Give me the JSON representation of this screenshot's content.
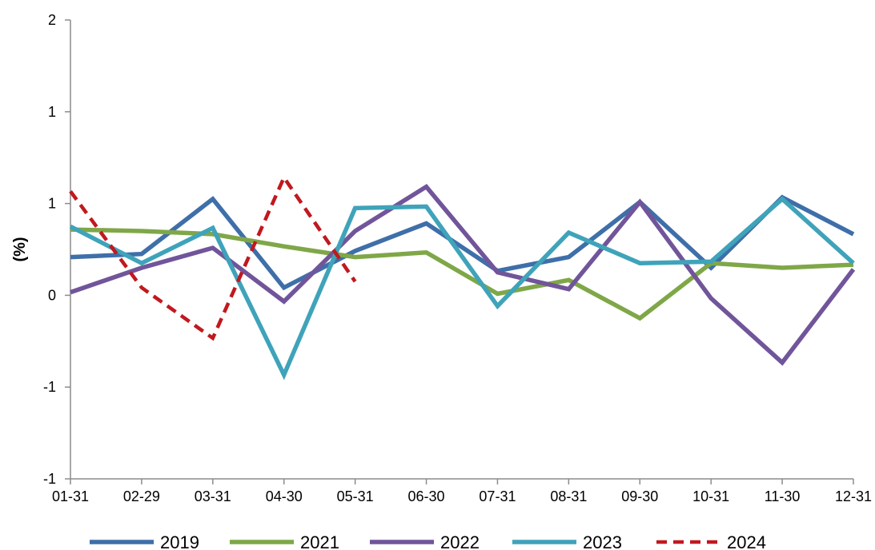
{
  "chart_data": {
    "type": "line",
    "title": "",
    "xlabel": "",
    "ylabel": "(%)",
    "ylim": [
      -1,
      2
    ],
    "yticks": [
      "2",
      "1",
      "1",
      "0",
      "-1",
      "-1"
    ],
    "categories": [
      "01-31",
      "02-29",
      "03-31",
      "04-30",
      "05-31",
      "06-30",
      "07-31",
      "08-31",
      "09-30",
      "10-31",
      "11-30",
      "12-31"
    ],
    "grid": false,
    "legend_position": "bottom",
    "series": [
      {
        "name": "2019",
        "color": "#3e6fa9",
        "dash": false,
        "values": [
          0.45,
          0.47,
          0.83,
          0.25,
          0.49,
          0.67,
          0.36,
          0.45,
          0.81,
          0.38,
          0.84,
          0.6
        ]
      },
      {
        "name": "2021",
        "color": "#7fa748",
        "dash": false,
        "values": [
          0.63,
          0.62,
          0.6,
          0.52,
          0.45,
          0.48,
          0.21,
          0.3,
          0.05,
          0.41,
          0.38,
          0.4
        ]
      },
      {
        "name": "2022",
        "color": "#71559a",
        "dash": false,
        "values": [
          0.22,
          0.38,
          0.51,
          0.16,
          0.62,
          0.91,
          0.35,
          0.24,
          0.81,
          0.18,
          -0.24,
          0.37
        ]
      },
      {
        "name": "2023",
        "color": "#3fa3ba",
        "dash": false,
        "values": [
          0.65,
          0.41,
          0.64,
          -0.32,
          0.77,
          0.78,
          0.13,
          0.61,
          0.41,
          0.42,
          0.83,
          0.41
        ]
      },
      {
        "name": "2024",
        "color": "#c0191e",
        "dash": true,
        "values": [
          0.88,
          0.25,
          -0.08,
          0.97,
          0.29,
          null,
          null,
          null,
          null,
          null,
          null,
          null
        ]
      }
    ]
  }
}
